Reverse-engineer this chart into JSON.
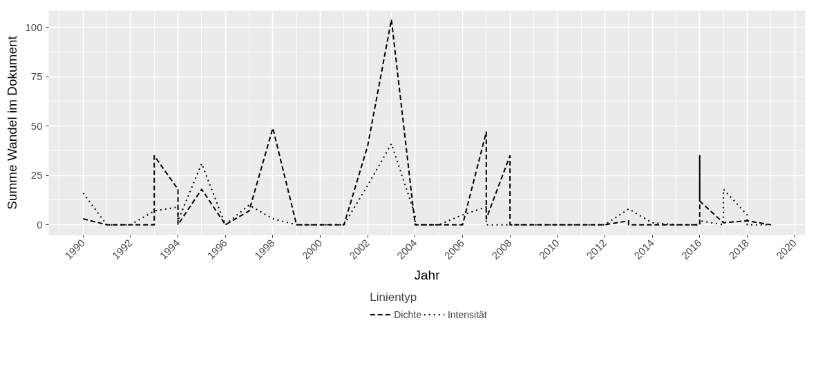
{
  "chart_data": {
    "type": "line",
    "xlabel": "Jahr",
    "ylabel": "Summe Wandel im Dokument",
    "legend_title": "Linientyp",
    "xlim": [
      1988.55,
      2020.45
    ],
    "ylim": [
      -5.2,
      108.5
    ],
    "xticks": [
      1990,
      1992,
      1994,
      1996,
      1998,
      2000,
      2002,
      2004,
      2006,
      2008,
      2010,
      2012,
      2014,
      2016,
      2018,
      2020
    ],
    "yticks": [
      0,
      25,
      50,
      75,
      100
    ],
    "grid": true,
    "legend": "bottom",
    "series": [
      {
        "name": "Dichte",
        "color": "#000000",
        "line_style": "dashed",
        "x": [
          1990,
          1991,
          1992,
          1993,
          1993,
          1994,
          1994,
          1995,
          1996,
          1997,
          1998,
          1999,
          2000,
          2001,
          2002,
          2003,
          2004,
          2005,
          2006,
          2007,
          2007,
          2008,
          2008,
          2009,
          2010,
          2011,
          2012,
          2013,
          2013,
          2014,
          2015,
          2016,
          2016,
          2016,
          2017,
          2018,
          2019
        ],
        "values": [
          3,
          0,
          0,
          0,
          35,
          18,
          0,
          18,
          0,
          7,
          49,
          0,
          0,
          0,
          40,
          104,
          0,
          0,
          0,
          47,
          3,
          35,
          0,
          0,
          0,
          0,
          0,
          2,
          0,
          0,
          0,
          0,
          35,
          12,
          1,
          2,
          0
        ]
      },
      {
        "name": "Intensität",
        "color": "#000000",
        "line_style": "dotted",
        "x": [
          1990,
          1991,
          1992,
          1993,
          1994,
          1994,
          1995,
          1996,
          1997,
          1998,
          1999,
          2000,
          2001,
          2002,
          2003,
          2004,
          2004,
          2005,
          2006,
          2007,
          2007,
          2008,
          2009,
          2010,
          2011,
          2012,
          2013,
          2014,
          2015,
          2016,
          2016,
          2017,
          2017,
          2018,
          2018,
          2019
        ],
        "values": [
          16,
          0,
          0,
          7,
          9,
          2,
          31,
          0,
          10,
          3,
          0,
          0,
          0,
          20,
          41,
          5,
          0,
          0,
          5,
          9,
          0,
          0,
          0,
          0,
          0,
          0,
          8,
          1,
          0,
          0,
          2,
          0,
          18,
          5,
          0,
          0
        ]
      }
    ]
  }
}
